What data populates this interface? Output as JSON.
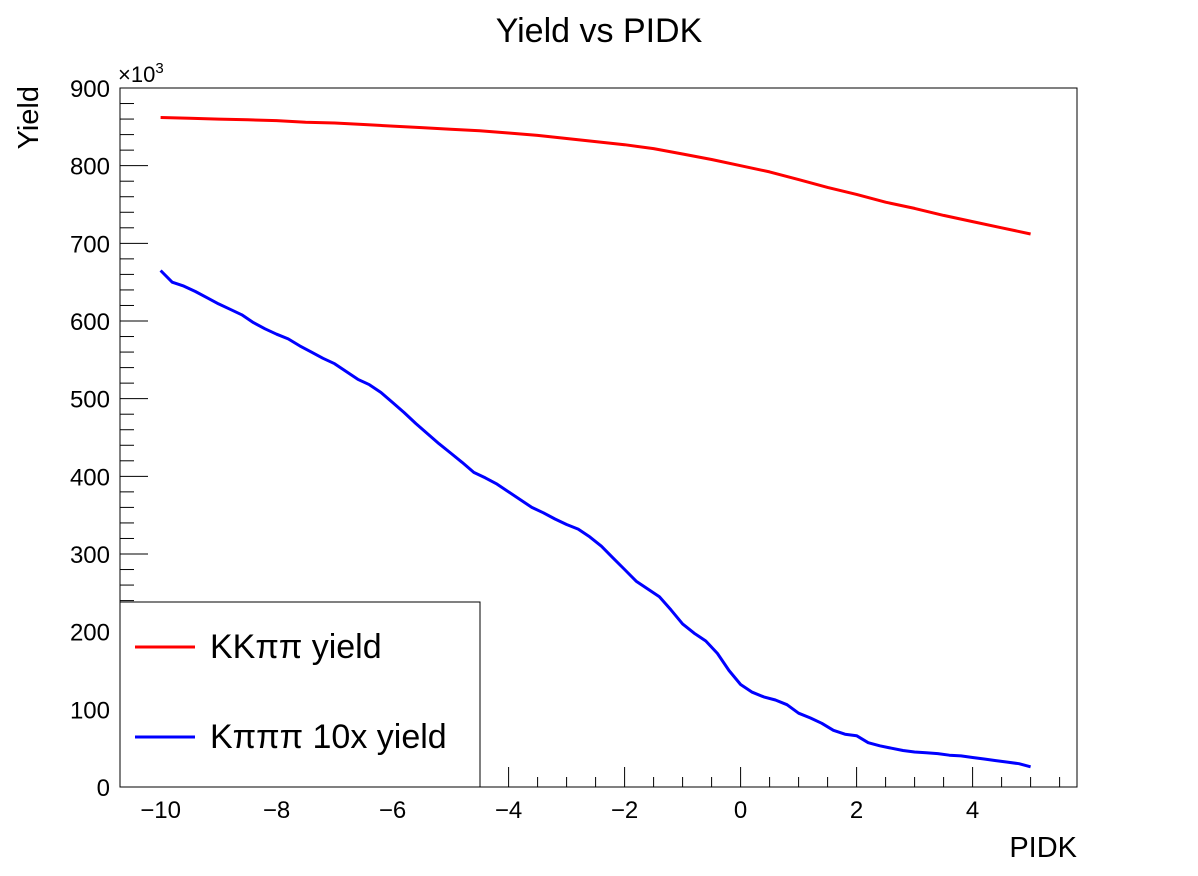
{
  "chart_data": {
    "type": "line",
    "title": "Yield vs PIDK",
    "xlabel": "PIDK",
    "ylabel": "Yield",
    "y_multiplier_label": "×10",
    "y_multiplier_exponent": "3",
    "xlim": [
      -10.7,
      5.8
    ],
    "ylim": [
      0,
      900
    ],
    "x_ticks": [
      -10,
      -8,
      -6,
      -4,
      -2,
      0,
      2,
      4
    ],
    "x_tick_labels": [
      "−10",
      "−8",
      "−6",
      "−4",
      "−2",
      "0",
      "2",
      "4"
    ],
    "y_ticks": [
      0,
      100,
      200,
      300,
      400,
      500,
      600,
      700,
      800,
      900
    ],
    "y_tick_labels": [
      "0",
      "100",
      "200",
      "300",
      "400",
      "500",
      "600",
      "700",
      "800",
      "900"
    ],
    "grid": false,
    "legend_position": "bottom-left",
    "series": [
      {
        "name": "KKππ yield",
        "color": "#ff0000",
        "x": [
          -10,
          -9.5,
          -9,
          -8.5,
          -8,
          -7.5,
          -7,
          -6.5,
          -6,
          -5.5,
          -5,
          -4.5,
          -4,
          -3.5,
          -3,
          -2.5,
          -2,
          -1.5,
          -1,
          -0.5,
          0,
          0.5,
          1,
          1.5,
          2,
          2.5,
          3,
          3.5,
          4,
          4.5,
          5
        ],
        "values": [
          862,
          861,
          860,
          859,
          858,
          856,
          855,
          853,
          851,
          849,
          847,
          845,
          842,
          839,
          835,
          831,
          827,
          822,
          815,
          808,
          800,
          792,
          782,
          772,
          763,
          753,
          745,
          736,
          728,
          720,
          712
        ]
      },
      {
        "name": "Kπππ 10x yield",
        "color": "#0000ff",
        "x": [
          -10,
          -9.8,
          -9.6,
          -9.4,
          -9.2,
          -9,
          -8.8,
          -8.6,
          -8.4,
          -8.2,
          -8,
          -7.8,
          -7.6,
          -7.4,
          -7.2,
          -7,
          -6.8,
          -6.6,
          -6.4,
          -6.2,
          -6,
          -5.8,
          -5.6,
          -5.4,
          -5.2,
          -5,
          -4.8,
          -4.6,
          -4.4,
          -4.2,
          -4,
          -3.8,
          -3.6,
          -3.4,
          -3.2,
          -3,
          -2.8,
          -2.6,
          -2.4,
          -2.2,
          -2,
          -1.8,
          -1.6,
          -1.4,
          -1.2,
          -1,
          -0.8,
          -0.6,
          -0.4,
          -0.2,
          0,
          0.2,
          0.4,
          0.6,
          0.8,
          1,
          1.2,
          1.4,
          1.6,
          1.8,
          2,
          2.2,
          2.4,
          2.6,
          2.8,
          3,
          3.2,
          3.4,
          3.6,
          3.8,
          4,
          4.2,
          4.4,
          4.6,
          4.8,
          5
        ],
        "values": [
          665,
          650,
          645,
          638,
          630,
          622,
          615,
          608,
          598,
          590,
          583,
          577,
          568,
          560,
          552,
          545,
          535,
          525,
          518,
          508,
          495,
          482,
          468,
          455,
          442,
          430,
          418,
          405,
          398,
          390,
          380,
          370,
          360,
          353,
          345,
          338,
          332,
          322,
          310,
          295,
          280,
          265,
          255,
          245,
          228,
          210,
          198,
          188,
          172,
          150,
          132,
          122,
          116,
          112,
          106,
          95,
          89,
          82,
          73,
          68,
          66,
          57,
          53,
          50,
          47,
          45,
          44,
          43,
          41,
          40,
          38,
          36,
          34,
          32,
          30,
          26
        ]
      }
    ]
  }
}
